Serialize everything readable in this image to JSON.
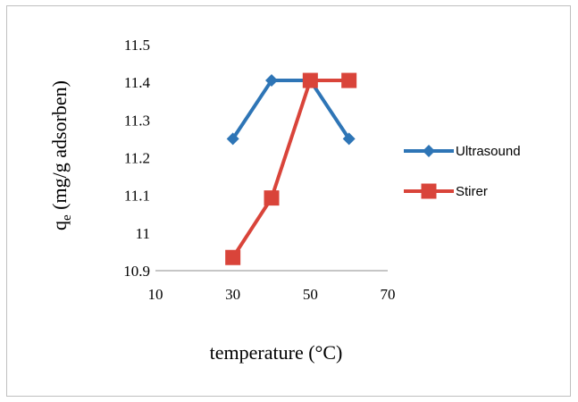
{
  "chart_data": {
    "type": "line",
    "xlabel": "temperature  (°C)",
    "ylabel_main": "q",
    "ylabel_sub": "e",
    "ylabel_rest": " (mg/g adsorben)",
    "xlim": [
      10,
      70
    ],
    "ylim": [
      10.9,
      11.5
    ],
    "x_ticks": [
      10,
      30,
      50,
      70
    ],
    "x_tick_labels": [
      "10",
      "30",
      "50",
      "70"
    ],
    "y_ticks": [
      10.9,
      11.0,
      11.1,
      11.2,
      11.3,
      11.4,
      11.5
    ],
    "y_tick_labels": [
      "10.9",
      "11",
      "11.1",
      "11.2",
      "11.3",
      "11.4",
      "11.5"
    ],
    "grid": false,
    "legend_position": "right",
    "series": [
      {
        "name": "Ultrasound",
        "color": "#2e75b6",
        "marker": "diamond",
        "x": [
          30,
          40,
          50,
          60
        ],
        "y": [
          11.25,
          11.405,
          11.405,
          11.25
        ]
      },
      {
        "name": "Stirer",
        "color": "#d9443a",
        "marker": "square",
        "x": [
          30,
          40,
          50,
          60
        ],
        "y": [
          10.935,
          11.093,
          11.405,
          11.405
        ]
      }
    ]
  }
}
